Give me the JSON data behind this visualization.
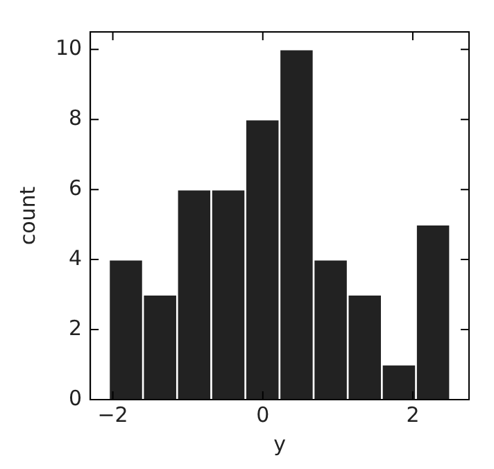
{
  "chart_data": {
    "type": "histogram",
    "xlabel": "y",
    "ylabel": "count",
    "bins": [
      -2.05,
      -1.6,
      -1.14,
      -0.69,
      -0.23,
      0.22,
      0.68,
      1.13,
      1.59,
      2.04,
      2.5
    ],
    "values": [
      4,
      3,
      6,
      6,
      8,
      10,
      4,
      3,
      1,
      5
    ],
    "color": "#222222",
    "xlim": [
      -2.3,
      2.75
    ],
    "xticks": [
      -2,
      0,
      2
    ],
    "ylim": [
      0,
      10.5
    ],
    "yticks": [
      0,
      2,
      4,
      6,
      8,
      10
    ],
    "grid": false
  }
}
